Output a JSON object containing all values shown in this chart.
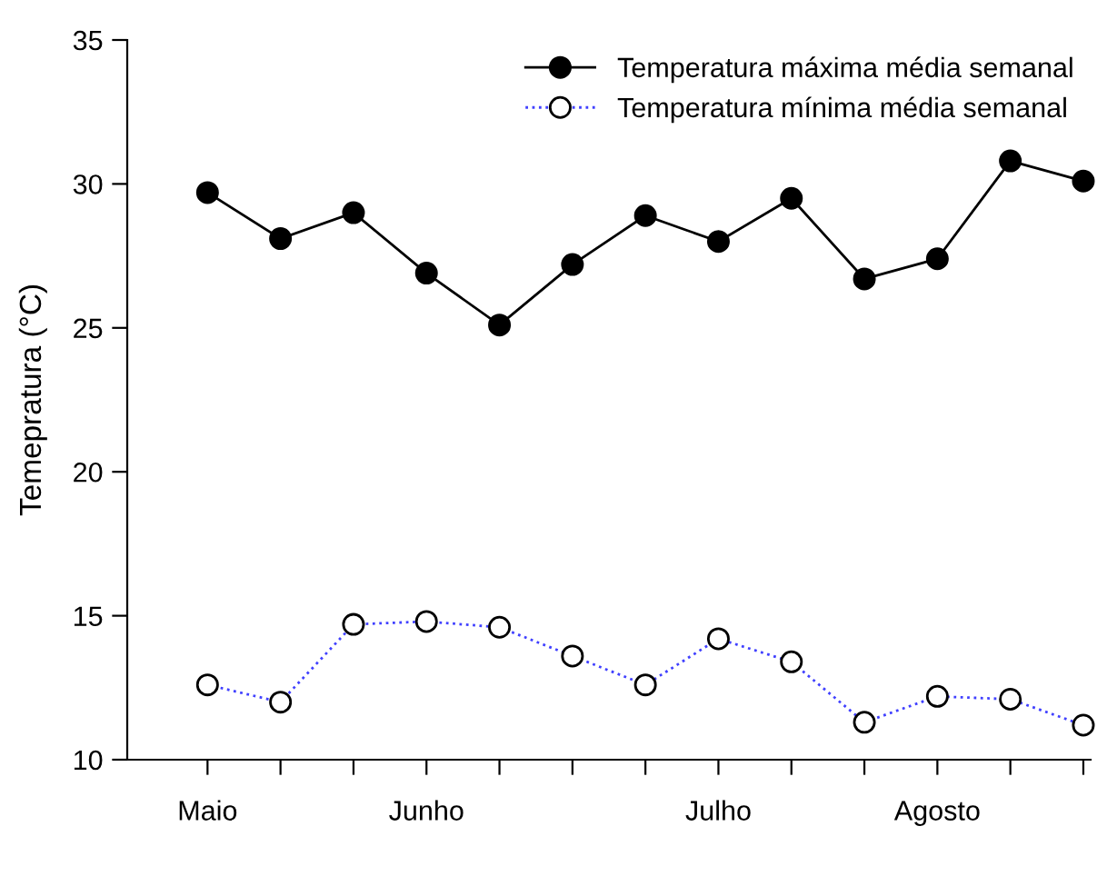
{
  "chart_data": {
    "type": "line",
    "ylabel": "Temepratura (°C)",
    "categories": [
      "Maio",
      null,
      null,
      "Junho",
      null,
      null,
      null,
      "Julho",
      null,
      null,
      "Agosto",
      null,
      null
    ],
    "ylim": [
      10,
      35
    ],
    "yticks": [
      10,
      15,
      20,
      25,
      30,
      35
    ],
    "grid": false,
    "legend": "top right",
    "series": [
      {
        "name": "Temperatura máxima média semanal",
        "color": "#000000",
        "marker": "circle",
        "line_style": "solid",
        "values": [
          29.7,
          28.1,
          29.0,
          26.9,
          25.1,
          27.2,
          28.9,
          28.0,
          29.5,
          26.7,
          27.4,
          30.8,
          30.1
        ]
      },
      {
        "name": "Temperatura mínima média semanal",
        "color": "#4040ff",
        "marker": "circle",
        "line_style": "dotted",
        "values": [
          12.6,
          12.0,
          14.7,
          14.8,
          14.6,
          13.6,
          12.6,
          14.2,
          13.4,
          11.3,
          12.2,
          12.1,
          11.2
        ]
      }
    ]
  }
}
